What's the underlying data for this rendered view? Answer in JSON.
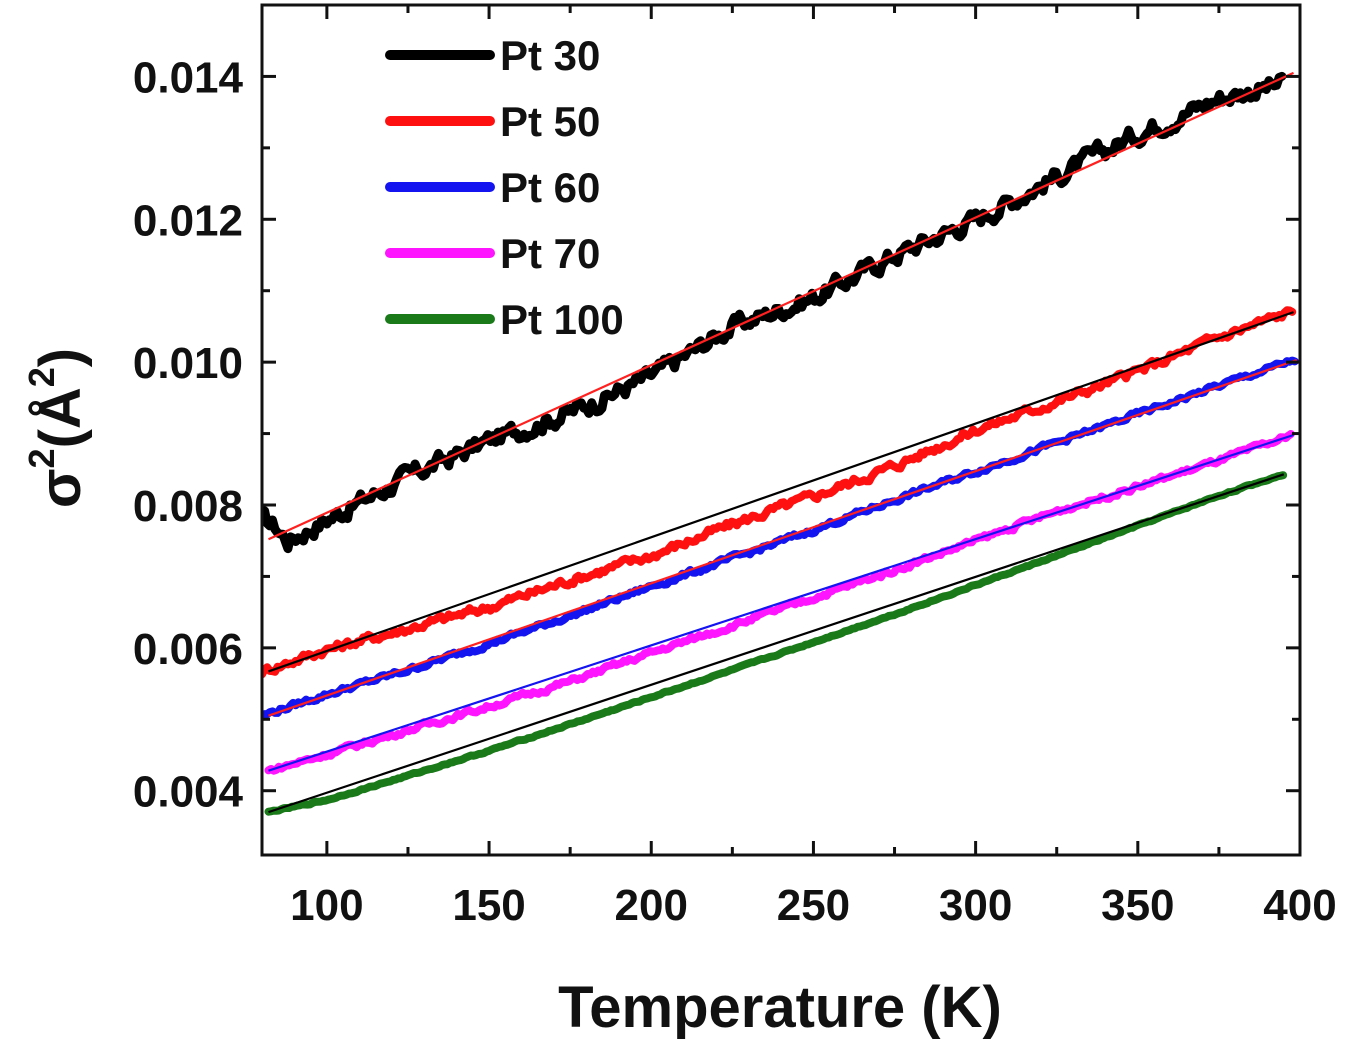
{
  "chart_data": {
    "type": "line",
    "title": "",
    "xlabel": "Temperature (K)",
    "ylabel": "σ²(Å²)",
    "ylabel_parts": {
      "sigma": "σ",
      "sup1": "2",
      "open": "(",
      "angstrom": "Å",
      "sup2": "2",
      "close": ")"
    },
    "xlim": [
      80,
      400
    ],
    "ylim": [
      0.0031,
      0.015
    ],
    "x_ticks": [
      100,
      150,
      200,
      250,
      300,
      350,
      400
    ],
    "x_tick_labels": [
      "100",
      "150",
      "200",
      "250",
      "300",
      "350",
      "400"
    ],
    "y_ticks": [
      0.004,
      0.006,
      0.008,
      0.01,
      0.012,
      0.014
    ],
    "y_tick_labels": [
      "0.004",
      "0.006",
      "0.008",
      "0.010",
      "0.012",
      "0.014"
    ],
    "legend_position": "top-left",
    "series": [
      {
        "name": "Pt 30",
        "color": "#000000",
        "fit_color": "#ff2020",
        "x": [
          80,
          84,
          88,
          100,
          125,
          150,
          175,
          200,
          225,
          250,
          275,
          300,
          325,
          350,
          375,
          395
        ],
        "values": [
          0.0078,
          0.0077,
          0.0075,
          0.0078,
          0.0084,
          0.0089,
          0.0093,
          0.0098,
          0.0105,
          0.0109,
          0.0115,
          0.012,
          0.0126,
          0.0132,
          0.0137,
          0.0139
        ],
        "fit": {
          "x": [
            82,
            398
          ],
          "y": [
            0.00752,
            0.01405
          ]
        }
      },
      {
        "name": "Pt 50",
        "color": "#ff1010",
        "fit_color": "#000000",
        "x": [
          80,
          100,
          125,
          150,
          175,
          200,
          225,
          250,
          275,
          300,
          325,
          350,
          375,
          398
        ],
        "values": [
          0.00567,
          0.00598,
          0.00627,
          0.00657,
          0.00695,
          0.00729,
          0.00773,
          0.00812,
          0.00855,
          0.00905,
          0.00945,
          0.00987,
          0.01035,
          0.01072
        ],
        "fit": {
          "x": [
            82,
            398
          ],
          "y": [
            0.00567,
            0.0107
          ]
        }
      },
      {
        "name": "Pt 60",
        "color": "#1414f0",
        "fit_color": "#ff2020",
        "x": [
          80,
          100,
          125,
          150,
          175,
          200,
          225,
          250,
          275,
          300,
          325,
          350,
          375,
          399
        ],
        "values": [
          0.00505,
          0.00535,
          0.00569,
          0.00606,
          0.00645,
          0.00686,
          0.00725,
          0.00765,
          0.00807,
          0.00847,
          0.00887,
          0.00927,
          0.00967,
          0.01004
        ],
        "fit": {
          "x": [
            82,
            399
          ],
          "y": [
            0.00505,
            0.01003
          ]
        }
      },
      {
        "name": "Pt 70",
        "color": "#ff14ff",
        "fit_color": "#1414f0",
        "x": [
          82,
          100,
          125,
          150,
          175,
          200,
          225,
          250,
          275,
          300,
          325,
          350,
          375,
          398
        ],
        "values": [
          0.00428,
          0.00451,
          0.00485,
          0.00518,
          0.00553,
          0.00593,
          0.00631,
          0.0067,
          0.00709,
          0.0075,
          0.00791,
          0.00826,
          0.00862,
          0.00898
        ],
        "fit": {
          "x": [
            82,
            398
          ],
          "y": [
            0.00428,
            0.00898
          ]
        }
      },
      {
        "name": "Pt 100",
        "color": "#1a7a1a",
        "fit_color": "#000000",
        "x": [
          82,
          100,
          125,
          150,
          175,
          200,
          225,
          250,
          275,
          300,
          325,
          350,
          375,
          395
        ],
        "values": [
          0.0037,
          0.00387,
          0.00421,
          0.00456,
          0.00493,
          0.00531,
          0.00569,
          0.00608,
          0.00647,
          0.00688,
          0.00729,
          0.00771,
          0.00813,
          0.00843
        ],
        "fit": {
          "x": [
            82,
            395
          ],
          "y": [
            0.0037,
            0.00843
          ]
        }
      }
    ]
  }
}
